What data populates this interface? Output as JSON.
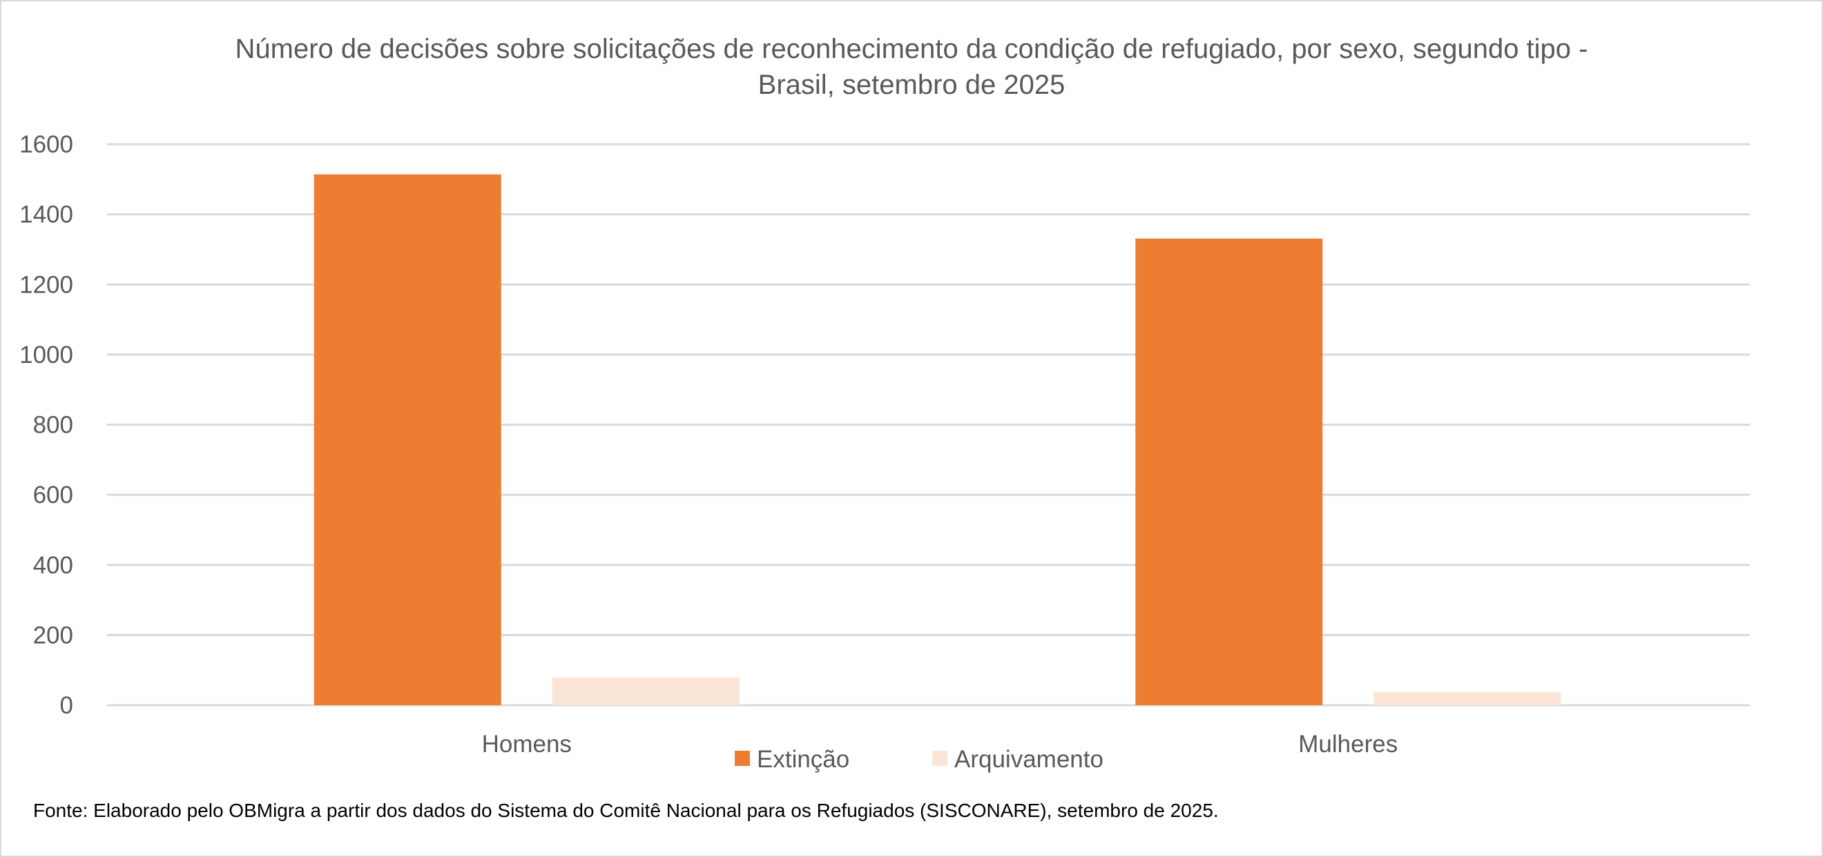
{
  "chart_data": {
    "type": "bar",
    "title": "Número de decisões sobre solicitações de reconhecimento da condição de refugiado, por sexo, segundo tipo - Brasil, setembro de 2025",
    "title_lines": [
      "Número de decisões sobre solicitações de reconhecimento da condição de refugiado, por sexo, segundo tipo -",
      "Brasil, setembro de 2025"
    ],
    "categories": [
      "Homens",
      "Mulheres"
    ],
    "series": [
      {
        "name": "Extinção",
        "values": [
          1514,
          1331
        ],
        "color": "#ED7D31"
      },
      {
        "name": "Arquivamento",
        "values": [
          79,
          38
        ],
        "color": "#FBE5D6"
      }
    ],
    "xlabel": "",
    "ylabel": "",
    "ylim": [
      0,
      1600
    ],
    "yticks": [
      0,
      200,
      400,
      600,
      800,
      1000,
      1200,
      1400,
      1600
    ],
    "grid": true,
    "legend_position": "bottom",
    "source": "Fonte: Elaborado pelo OBMigra a partir dos dados  do Sistema do Comitê Nacional para os Refugiados (SISCONARE), setembro de 2025."
  }
}
